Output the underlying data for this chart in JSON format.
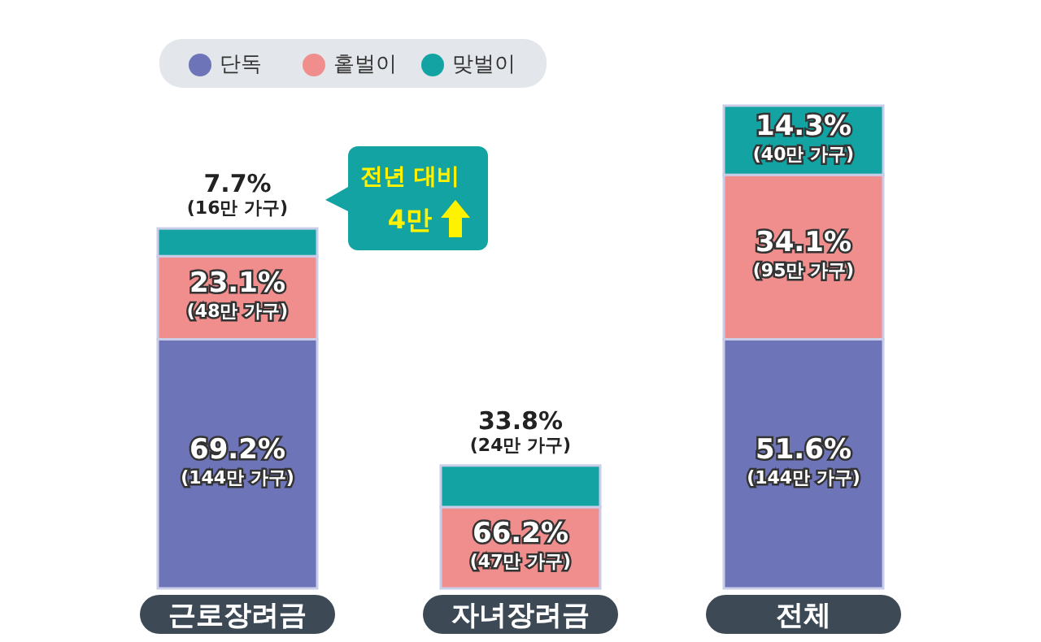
{
  "chart_data": {
    "type": "bar",
    "stacked": true,
    "legend": "top",
    "categories": [
      "근로장려금",
      "자녀장려금",
      "전체"
    ],
    "series": [
      {
        "name": "단독",
        "color": "#6e74b8",
        "values": [
          144,
          null,
          144
        ],
        "value_labels": [
          "69.2%\n(144만 가구)",
          null,
          "51.6%\n(144만 가구)"
        ]
      },
      {
        "name": "홑벌이",
        "color": "#ef8e8c",
        "values": [
          48,
          47,
          95
        ],
        "value_labels": [
          "23.1%\n(48만 가구)",
          "66.2%\n(47만 가구)",
          "34.1%\n(95만 가구)"
        ]
      },
      {
        "name": "맞벌이",
        "color": "#14a3a3",
        "values": [
          16,
          24,
          40
        ],
        "value_labels": [
          "7.7%\n(16만 가구)",
          "33.8%\n(24만 가구)",
          "14.3%\n(40만 가구)"
        ]
      }
    ],
    "annotations": [
      "전년 대비\n4만"
    ]
  }
}
